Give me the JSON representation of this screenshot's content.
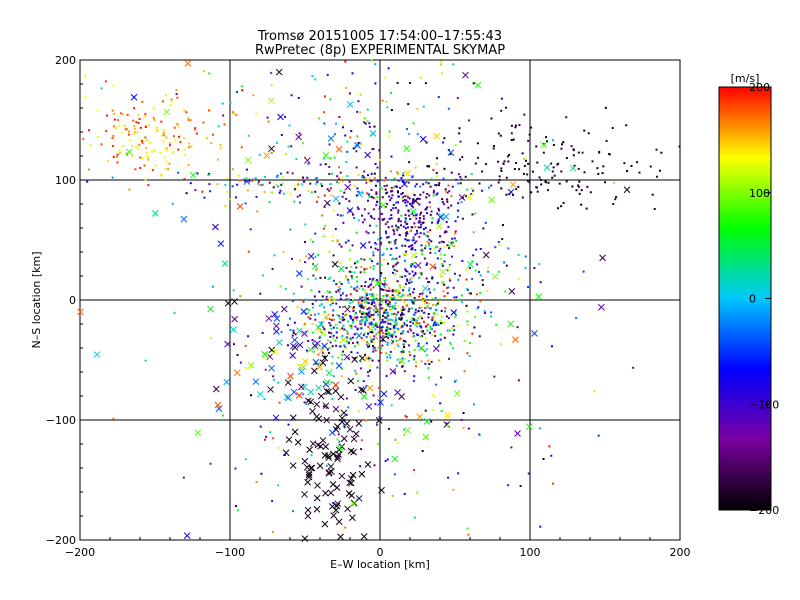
{
  "chart_data": {
    "type": "scatter",
    "title": "Tromsø 20151005 17:54:00–17:55:43",
    "subtitle": "RwPretec (8p) EXPERIMENTAL SKYMAP",
    "xlabel": "E–W location [km]",
    "ylabel": "N–S location [km]",
    "xlim": [
      -200,
      200
    ],
    "ylim": [
      -200,
      200
    ],
    "xticks": [
      -200,
      -100,
      0,
      100,
      200
    ],
    "yticks": [
      -200,
      -100,
      0,
      100,
      200
    ],
    "xtick_labels": [
      "−200",
      "−100",
      "0",
      "100",
      "200"
    ],
    "ytick_labels": [
      "−200",
      "−100",
      "0",
      "100",
      "200"
    ],
    "grid": true,
    "grid_lines": [
      -100,
      0,
      100
    ],
    "markers": [
      "dot",
      "x"
    ],
    "colorbar": {
      "label": "[m/s]",
      "range": [
        -200,
        200
      ],
      "ticks": [
        200,
        100,
        0,
        -100,
        -200
      ],
      "tick_labels": [
        "200",
        "100",
        "0",
        "−100",
        "−200"
      ],
      "colors": [
        "#000000",
        "#7a00a0",
        "#0000ff",
        "#00c8ff",
        "#00ff00",
        "#ffff00",
        "#ff0000"
      ]
    },
    "clusters": [
      {
        "name": "central",
        "center": [
          0,
          -15
        ],
        "spread": [
          28,
          20
        ],
        "count": 900,
        "v_range": [
          -200,
          200
        ],
        "marker": "dot"
      },
      {
        "name": "north-blue",
        "center": [
          18,
          70
        ],
        "spread": [
          18,
          18
        ],
        "count": 260,
        "v_range": [
          -180,
          -60
        ],
        "marker": "dot"
      },
      {
        "name": "north-red",
        "center": [
          -155,
          135
        ],
        "spread": [
          28,
          18
        ],
        "count": 170,
        "v_range": [
          120,
          200
        ],
        "marker": "dot"
      },
      {
        "name": "north-black",
        "center": [
          105,
          110
        ],
        "spread": [
          45,
          20
        ],
        "count": 180,
        "v_range": [
          -200,
          -170
        ],
        "marker": "dot"
      },
      {
        "name": "top-sparse",
        "center": [
          -20,
          150
        ],
        "spread": [
          55,
          30
        ],
        "count": 140,
        "v_range": [
          -200,
          200
        ],
        "marker": "dot"
      },
      {
        "name": "ring-100",
        "center": [
          -40,
          95
        ],
        "spread": [
          55,
          8
        ],
        "count": 180,
        "v_range": [
          -200,
          200
        ],
        "marker": "dot"
      },
      {
        "name": "mid-band",
        "center": [
          20,
          35
        ],
        "spread": [
          35,
          20
        ],
        "count": 220,
        "v_range": [
          -200,
          200
        ],
        "marker": "dot"
      },
      {
        "name": "south-x",
        "center": [
          -35,
          -135
        ],
        "spread": [
          14,
          40
        ],
        "count": 110,
        "v_range": [
          -200,
          -180
        ],
        "marker": "x"
      },
      {
        "name": "west-x",
        "center": [
          -55,
          -50
        ],
        "spread": [
          30,
          22
        ],
        "count": 70,
        "v_range": [
          -200,
          200
        ],
        "marker": "x"
      },
      {
        "name": "scatter-x",
        "center": [
          0,
          40
        ],
        "spread": [
          95,
          100
        ],
        "count": 130,
        "v_range": [
          -200,
          200
        ],
        "marker": "x"
      },
      {
        "name": "south-dots",
        "center": [
          -10,
          -90
        ],
        "spread": [
          60,
          55
        ],
        "count": 160,
        "v_range": [
          -200,
          200
        ],
        "marker": "dot"
      }
    ]
  }
}
